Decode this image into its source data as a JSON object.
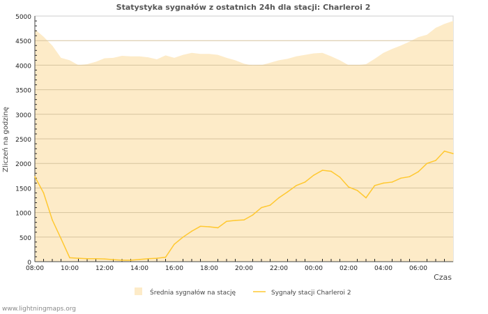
{
  "chart_data": {
    "type": "area",
    "title": "Statystyka sygnałów z ostatnich 24h dla stacji: Charleroi 2",
    "xlabel": "Czas",
    "ylabel": "Zliczeń na godzinę",
    "ylim": [
      0,
      5000
    ],
    "yticks": [
      0,
      500,
      1000,
      1500,
      2000,
      2500,
      3000,
      3500,
      4000,
      4500,
      5000
    ],
    "xtick_labels": [
      "08:00",
      "10:00",
      "12:00",
      "14:00",
      "16:00",
      "18:00",
      "20:00",
      "22:00",
      "00:00",
      "02:00",
      "04:00",
      "06:00"
    ],
    "x_hours_from_start": [
      0,
      0.5,
      1,
      1.5,
      2,
      2.5,
      3,
      3.5,
      4,
      4.5,
      5,
      5.5,
      6,
      6.5,
      7,
      7.5,
      8,
      8.5,
      9,
      9.5,
      10,
      10.5,
      11,
      11.5,
      12,
      12.5,
      13,
      13.5,
      14,
      14.5,
      15,
      15.5,
      16,
      16.5,
      17,
      17.5,
      18,
      18.5,
      19,
      19.5,
      20,
      20.5,
      21,
      21.5,
      22,
      22.5,
      23,
      23.5,
      24
    ],
    "grid": true,
    "legend_position": "bottom",
    "series": [
      {
        "name": "Średnia sygnałów na stację",
        "type": "area",
        "color": "#fdebc8",
        "values": [
          4730,
          4580,
          4400,
          4150,
          4100,
          4000,
          4020,
          4070,
          4140,
          4150,
          4190,
          4180,
          4180,
          4160,
          4120,
          4200,
          4150,
          4210,
          4250,
          4230,
          4230,
          4210,
          4150,
          4100,
          4030,
          3990,
          4000,
          4050,
          4100,
          4130,
          4180,
          4210,
          4240,
          4250,
          4180,
          4100,
          4000,
          4000,
          4020,
          4130,
          4250,
          4330,
          4400,
          4480,
          4570,
          4620,
          4760,
          4840,
          4900
        ]
      },
      {
        "name": "Sygnały stacji Charleroi 2",
        "type": "line",
        "color": "#ffc830",
        "values": [
          1730,
          1400,
          850,
          470,
          80,
          70,
          60,
          60,
          55,
          40,
          30,
          30,
          45,
          60,
          70,
          90,
          355,
          500,
          620,
          720,
          710,
          690,
          820,
          840,
          850,
          950,
          1100,
          1150,
          1300,
          1420,
          1550,
          1620,
          1760,
          1860,
          1840,
          1720,
          1520,
          1450,
          1300,
          1550,
          1600,
          1620,
          1700,
          1730,
          1830,
          2000,
          2060,
          2250,
          2200
        ]
      }
    ]
  },
  "footer": "www.lightningmaps.org"
}
